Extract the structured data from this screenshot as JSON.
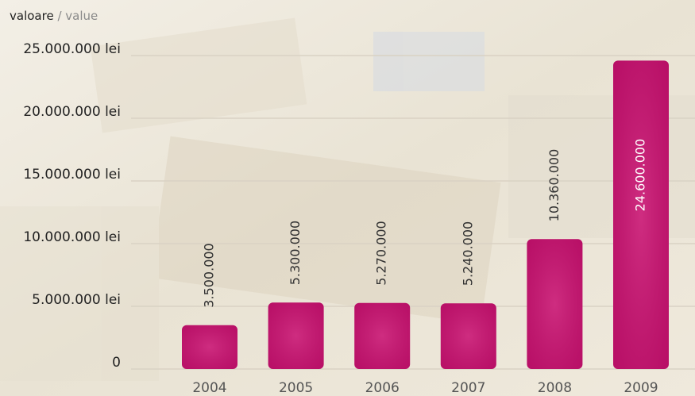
{
  "chart_data": {
    "type": "bar",
    "ylabel": [
      "valoare",
      "/ value"
    ],
    "categories": [
      "2004",
      "2005",
      "2006",
      "2007",
      "2008",
      "2009"
    ],
    "values": [
      3500000,
      5300000,
      5270000,
      5240000,
      10360000,
      24600000
    ],
    "value_labels": [
      "3.500.000",
      "5.300.000",
      "5.270.000",
      "5.240.000",
      "10.360.000",
      "24.600.000"
    ],
    "color": "#c8106f",
    "ylim": [
      0,
      25000000
    ],
    "yticks": [
      0,
      {
        "value": 5000000,
        "label": "5.000.000 lei"
      },
      {
        "value": 10000000,
        "label": "10.000.000 lei"
      },
      {
        "value": 15000000,
        "label": "15.000.000 lei"
      },
      {
        "value": 20000000,
        "label": "20.000.000 lei"
      },
      {
        "value": 25000000,
        "label": "25.000.000 lei"
      }
    ],
    "grid": true
  }
}
